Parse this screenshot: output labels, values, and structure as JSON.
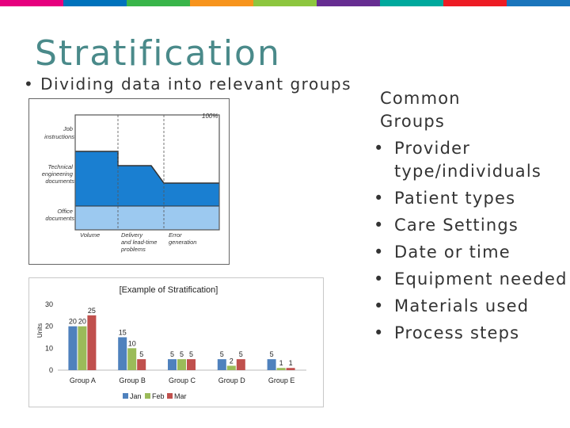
{
  "topbar_colors": [
    "#e6007e",
    "#0072bc",
    "#39b54a",
    "#f7941d",
    "#8dc63f",
    "#662d91",
    "#00a99d",
    "#ed1c24",
    "#1b75bc"
  ],
  "slide": {
    "title": "Stratification",
    "subtitle_bullet": "•",
    "subtitle": "Dividing data into relevant groups"
  },
  "groups": {
    "heading": "Common Groups",
    "bullet": "•",
    "items": [
      "Provider type/individuals",
      "Patient types",
      "Care Settings",
      "Date or time",
      "Equipment needed",
      "Materials used",
      "Process steps"
    ]
  },
  "figure": {
    "labels": {
      "job": [
        "Job",
        "instructions"
      ],
      "tech": [
        "Technical",
        "engineering",
        "documents"
      ],
      "office": [
        "Office",
        "documents"
      ],
      "pct": "100%",
      "volume": "Volume",
      "delivery": [
        "Delivery",
        "and lead-time",
        "problems"
      ],
      "error": [
        "Error",
        "generation"
      ]
    },
    "dark_blue": "#1a7fd1",
    "light_blue": "#9cc9f0"
  },
  "chart_data": {
    "type": "bar",
    "title": "[Example  of Stratification]",
    "ylabel": "Units",
    "xlabel": "",
    "ylim": [
      0,
      30
    ],
    "yticks": [
      0,
      10,
      20,
      30
    ],
    "categories": [
      "Group A",
      "Group B",
      "Group C",
      "Group D",
      "Group E"
    ],
    "series": [
      {
        "name": "Jan",
        "color": "#4f81bd",
        "values": [
          20,
          15,
          5,
          5,
          5
        ]
      },
      {
        "name": "Feb",
        "color": "#9bbb59",
        "values": [
          20,
          10,
          5,
          2,
          1
        ]
      },
      {
        "name": "Mar",
        "color": "#c0504d",
        "values": [
          25,
          5,
          5,
          5,
          1
        ]
      }
    ],
    "legend_position": "bottom"
  }
}
